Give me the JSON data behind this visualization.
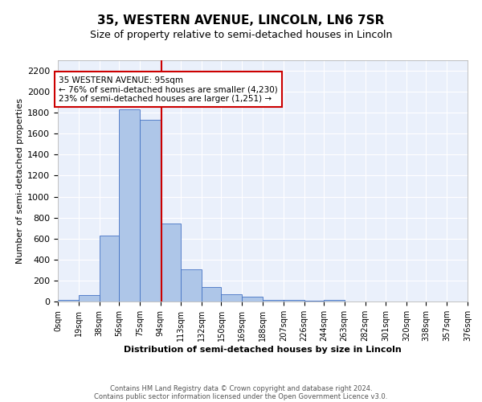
{
  "title": "35, WESTERN AVENUE, LINCOLN, LN6 7SR",
  "subtitle": "Size of property relative to semi-detached houses in Lincoln",
  "xlabel": "Distribution of semi-detached houses by size in Lincoln",
  "ylabel": "Number of semi-detached properties",
  "bin_edges": [
    0,
    19,
    38,
    56,
    75,
    94,
    113,
    132,
    150,
    169,
    188,
    207,
    226,
    244,
    263,
    282,
    301,
    320,
    338,
    357,
    376
  ],
  "bin_counts": [
    15,
    60,
    625,
    1830,
    1730,
    740,
    305,
    140,
    70,
    45,
    15,
    15,
    10,
    15,
    0,
    0,
    0,
    0,
    0,
    0
  ],
  "bar_facecolor": "#aec6e8",
  "bar_edgecolor": "#4472c4",
  "property_value": 95,
  "redline_color": "#cc0000",
  "annotation_text": "35 WESTERN AVENUE: 95sqm\n← 76% of semi-detached houses are smaller (4,230)\n23% of semi-detached houses are larger (1,251) →",
  "annotation_box_edgecolor": "#cc0000",
  "annotation_box_facecolor": "#ffffff",
  "ylim": [
    0,
    2300
  ],
  "yticks": [
    0,
    200,
    400,
    600,
    800,
    1000,
    1200,
    1400,
    1600,
    1800,
    2000,
    2200
  ],
  "tick_labels": [
    "0sqm",
    "19sqm",
    "38sqm",
    "56sqm",
    "75sqm",
    "94sqm",
    "113sqm",
    "132sqm",
    "150sqm",
    "169sqm",
    "188sqm",
    "207sqm",
    "226sqm",
    "244sqm",
    "263sqm",
    "282sqm",
    "301sqm",
    "320sqm",
    "338sqm",
    "357sqm",
    "376sqm"
  ],
  "footer_line1": "Contains HM Land Registry data © Crown copyright and database right 2024.",
  "footer_line2": "Contains public sector information licensed under the Open Government Licence v3.0.",
  "bg_color": "#eaf0fb",
  "fig_bg_color": "#ffffff",
  "title_fontsize": 11,
  "subtitle_fontsize": 9,
  "annotation_fontsize": 7.5,
  "axis_label_fontsize": 8,
  "ylabel_fontsize": 8,
  "tick_fontsize": 7,
  "ytick_fontsize": 8
}
